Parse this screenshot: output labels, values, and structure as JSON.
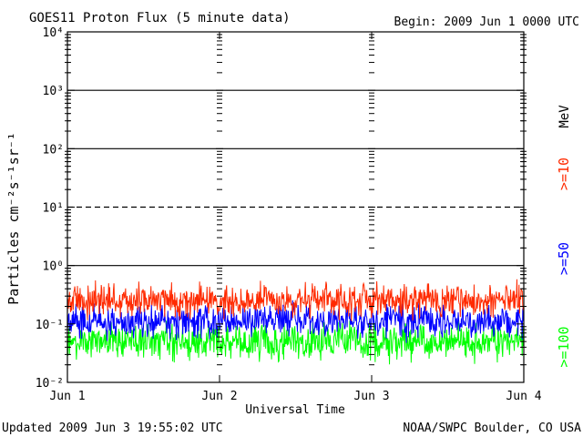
{
  "chart_data": {
    "type": "line",
    "title": "GOES11 Proton Flux (5 minute data)",
    "begin_label": "Begin: 2009 Jun 1 0000 UTC",
    "xlabel": "Universal Time",
    "ylabel": "Particles cm⁻²s⁻¹sr⁻¹",
    "units_label": "MeV",
    "y_scale": "log",
    "ylim": [
      0.01,
      10000
    ],
    "xlim": [
      0,
      3
    ],
    "x_ticks": [
      {
        "v": 0,
        "label": "Jun 1"
      },
      {
        "v": 1,
        "label": "Jun 2"
      },
      {
        "v": 2,
        "label": "Jun 3"
      },
      {
        "v": 3,
        "label": "Jun 4"
      }
    ],
    "y_ticks": [
      {
        "exp": -2,
        "label": "10⁻²"
      },
      {
        "exp": -1,
        "label": "10⁻¹"
      },
      {
        "exp": 0,
        "label": "10⁰"
      },
      {
        "exp": 1,
        "label": "10¹"
      },
      {
        "exp": 2,
        "label": "10²"
      },
      {
        "exp": 3,
        "label": "10³"
      },
      {
        "exp": 4,
        "label": "10⁴"
      }
    ],
    "reference_lines": [
      {
        "value": 1000,
        "style": "solid"
      },
      {
        "value": 100,
        "style": "solid"
      },
      {
        "value": 10,
        "style": "dashed"
      },
      {
        "value": 1,
        "style": "solid"
      }
    ],
    "series": [
      {
        "name": ">=10",
        "color": "#ff2a00",
        "base": 0.25,
        "spread": 0.38
      },
      {
        "name": ">=50",
        "color": "#0000ff",
        "base": 0.11,
        "spread": 0.38
      },
      {
        "name": ">=100",
        "color": "#00ff00",
        "base": 0.05,
        "spread": 0.4
      }
    ],
    "grid": false,
    "legend": "right"
  },
  "footer": {
    "updated": "Updated 2009 Jun  3 19:55:02 UTC",
    "source": "NOAA/SWPC Boulder, CO USA"
  }
}
